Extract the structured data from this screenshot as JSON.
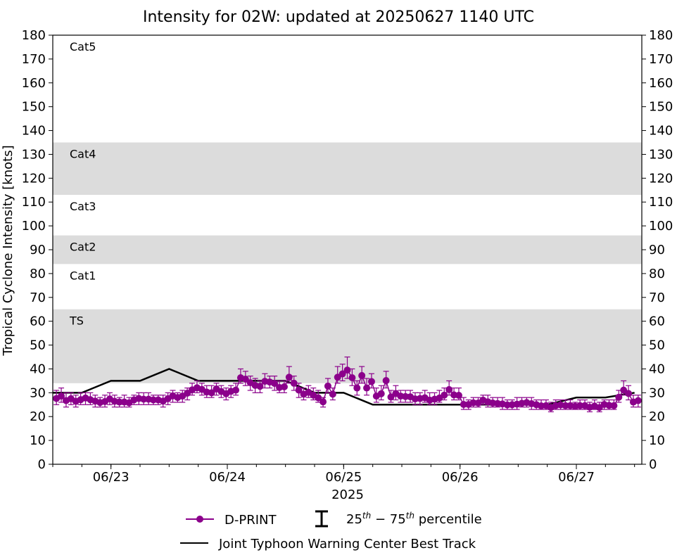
{
  "chart_data": {
    "type": "scatter",
    "title": "Intensity for 02W: updated at 20250627 1140 UTC",
    "xlabel": "2025",
    "ylabel": "Tropical Cyclone Intensity [knots]",
    "ylim": [
      0,
      180
    ],
    "yticks": [
      0,
      10,
      20,
      30,
      40,
      50,
      60,
      70,
      80,
      90,
      100,
      110,
      120,
      130,
      140,
      150,
      160,
      170,
      180
    ],
    "x_unit": "days (2025)",
    "xlim": [
      "2025-06-22 12:00",
      "2025-06-27 13:30"
    ],
    "xticks": [
      {
        "date": "2025-06-23",
        "label": "06/23"
      },
      {
        "date": "2025-06-24",
        "label": "06/24"
      },
      {
        "date": "2025-06-25",
        "label": "06/25"
      },
      {
        "date": "2025-06-26",
        "label": "06/26"
      },
      {
        "date": "2025-06-27",
        "label": "06/27"
      }
    ],
    "bands": [
      {
        "label": "TS",
        "from": 34,
        "to": 65,
        "shaded": true
      },
      {
        "label": "Cat1",
        "from": 65,
        "to": 84,
        "shaded": false
      },
      {
        "label": "Cat2",
        "from": 84,
        "to": 96,
        "shaded": true
      },
      {
        "label": "Cat3",
        "from": 96,
        "to": 113,
        "shaded": false
      },
      {
        "label": "Cat4",
        "from": 113,
        "to": 135,
        "shaded": true
      },
      {
        "label": "Cat5",
        "from": 135,
        "to": 180,
        "shaded": false
      }
    ],
    "series": [
      {
        "name": "D-PRINT",
        "color": "#8b008b",
        "points": [
          [
            "2025-06-22 12:45",
            27.6,
            25,
            31
          ],
          [
            "2025-06-22 13:45",
            28.6,
            26,
            32
          ],
          [
            "2025-06-22 14:45",
            26.7,
            24,
            30
          ],
          [
            "2025-06-22 15:45",
            27.5,
            25,
            30
          ],
          [
            "2025-06-22 16:45",
            26.4,
            24,
            29
          ],
          [
            "2025-06-22 17:45",
            27.1,
            25,
            30
          ],
          [
            "2025-06-22 18:45",
            27.8,
            25,
            30
          ],
          [
            "2025-06-22 19:45",
            27.1,
            25,
            30
          ],
          [
            "2025-06-22 20:45",
            26.5,
            24,
            29
          ],
          [
            "2025-06-22 21:45",
            25.9,
            24,
            28
          ],
          [
            "2025-06-22 22:45",
            26.3,
            24,
            29
          ],
          [
            "2025-06-22 23:45",
            27.4,
            25,
            30
          ],
          [
            "2025-06-23 00:45",
            26.4,
            24,
            29
          ],
          [
            "2025-06-23 01:45",
            26.1,
            24,
            28
          ],
          [
            "2025-06-23 02:45",
            26.1,
            24,
            29
          ],
          [
            "2025-06-23 03:45",
            25.8,
            24,
            28
          ],
          [
            "2025-06-23 04:45",
            27.0,
            25,
            29
          ],
          [
            "2025-06-23 05:45",
            27.6,
            25,
            30
          ],
          [
            "2025-06-23 06:45",
            27.3,
            25,
            30
          ],
          [
            "2025-06-23 07:45",
            27.3,
            25,
            30
          ],
          [
            "2025-06-23 08:45",
            27.0,
            25,
            29
          ],
          [
            "2025-06-23 09:45",
            27.0,
            25,
            29
          ],
          [
            "2025-06-23 10:45",
            26.5,
            24,
            29
          ],
          [
            "2025-06-23 11:45",
            27.5,
            25,
            30
          ],
          [
            "2025-06-23 12:45",
            28.7,
            26,
            31
          ],
          [
            "2025-06-23 13:45",
            28.0,
            26,
            30
          ],
          [
            "2025-06-23 14:45",
            28.6,
            26,
            31
          ],
          [
            "2025-06-23 15:45",
            29.8,
            27,
            32
          ],
          [
            "2025-06-23 16:45",
            31.2,
            29,
            34
          ],
          [
            "2025-06-23 17:45",
            32.1,
            30,
            35
          ],
          [
            "2025-06-23 18:45",
            31.4,
            29,
            34
          ],
          [
            "2025-06-23 19:45",
            30.3,
            28,
            33
          ],
          [
            "2025-06-23 20:45",
            30.0,
            28,
            33
          ],
          [
            "2025-06-23 21:45",
            31.6,
            29,
            34
          ],
          [
            "2025-06-23 22:45",
            30.5,
            28,
            33
          ],
          [
            "2025-06-23 23:45",
            29.6,
            27,
            32
          ],
          [
            "2025-06-24 00:45",
            30.6,
            28,
            33
          ],
          [
            "2025-06-24 01:45",
            31.1,
            29,
            34
          ],
          [
            "2025-06-24 02:45",
            36.3,
            34,
            40
          ],
          [
            "2025-06-24 03:45",
            35.7,
            33,
            39
          ],
          [
            "2025-06-24 04:45",
            34.2,
            31,
            37
          ],
          [
            "2025-06-24 05:45",
            33.1,
            30,
            36
          ],
          [
            "2025-06-24 06:45",
            32.7,
            30,
            35
          ],
          [
            "2025-06-24 07:45",
            34.8,
            32,
            38
          ],
          [
            "2025-06-24 08:45",
            34.5,
            32,
            37
          ],
          [
            "2025-06-24 09:45",
            33.9,
            31,
            37
          ],
          [
            "2025-06-24 10:45",
            32.2,
            30,
            35
          ],
          [
            "2025-06-24 11:45",
            32.5,
            30,
            35
          ],
          [
            "2025-06-24 12:45",
            36.5,
            34,
            41
          ],
          [
            "2025-06-24 13:45",
            34.0,
            31,
            37
          ],
          [
            "2025-06-24 14:45",
            31.1,
            28,
            34
          ],
          [
            "2025-06-24 15:45",
            29.4,
            27,
            32
          ],
          [
            "2025-06-24 16:45",
            30.2,
            28,
            33
          ],
          [
            "2025-06-24 17:45",
            29.0,
            27,
            32
          ],
          [
            "2025-06-24 18:45",
            27.9,
            26,
            31
          ],
          [
            "2025-06-24 19:45",
            26.2,
            24,
            28
          ],
          [
            "2025-06-24 20:45",
            32.8,
            30,
            36
          ],
          [
            "2025-06-24 21:45",
            29.4,
            27,
            32
          ],
          [
            "2025-06-24 22:45",
            36.5,
            34,
            41
          ],
          [
            "2025-06-24 23:45",
            37.9,
            35,
            42
          ],
          [
            "2025-06-25 00:45",
            39.5,
            36,
            45
          ],
          [
            "2025-06-25 01:45",
            36.3,
            33,
            40
          ],
          [
            "2025-06-25 02:45",
            32.0,
            29,
            35
          ],
          [
            "2025-06-25 03:45",
            37.2,
            34,
            41
          ],
          [
            "2025-06-25 04:45",
            32.0,
            29,
            36
          ],
          [
            "2025-06-25 05:45",
            34.7,
            32,
            38
          ],
          [
            "2025-06-25 06:45",
            28.6,
            26,
            32
          ],
          [
            "2025-06-25 07:45",
            29.6,
            27,
            33
          ],
          [
            "2025-06-25 08:45",
            35.1,
            32,
            39
          ],
          [
            "2025-06-25 09:45",
            28.2,
            26,
            31
          ],
          [
            "2025-06-25 10:45",
            29.7,
            27,
            33
          ],
          [
            "2025-06-25 11:45",
            28.6,
            26,
            31
          ],
          [
            "2025-06-25 12:45",
            28.4,
            26,
            31
          ],
          [
            "2025-06-25 13:45",
            28.3,
            26,
            31
          ],
          [
            "2025-06-25 14:45",
            27.4,
            25,
            30
          ],
          [
            "2025-06-25 15:45",
            27.6,
            25,
            30
          ],
          [
            "2025-06-25 16:45",
            27.9,
            26,
            31
          ],
          [
            "2025-06-25 17:45",
            26.9,
            25,
            30
          ],
          [
            "2025-06-25 18:45",
            27.3,
            25,
            30
          ],
          [
            "2025-06-25 19:45",
            27.8,
            26,
            31
          ],
          [
            "2025-06-25 20:45",
            29.0,
            27,
            32
          ],
          [
            "2025-06-25 21:45",
            31.3,
            29,
            35
          ],
          [
            "2025-06-25 22:45",
            29.1,
            27,
            32
          ],
          [
            "2025-06-25 23:45",
            28.9,
            27,
            32
          ],
          [
            "2025-06-26 00:45",
            25.1,
            23,
            28
          ],
          [
            "2025-06-26 01:45",
            25.1,
            23,
            27
          ],
          [
            "2025-06-26 02:45",
            25.8,
            24,
            28
          ],
          [
            "2025-06-26 03:45",
            25.7,
            24,
            28
          ],
          [
            "2025-06-26 04:45",
            26.9,
            25,
            29
          ],
          [
            "2025-06-26 05:45",
            26.2,
            24,
            29
          ],
          [
            "2025-06-26 06:45",
            25.7,
            24,
            28
          ],
          [
            "2025-06-26 07:45",
            25.5,
            24,
            28
          ],
          [
            "2025-06-26 08:45",
            25.3,
            23,
            28
          ],
          [
            "2025-06-26 09:45",
            24.9,
            23,
            27
          ],
          [
            "2025-06-26 10:45",
            25.0,
            23,
            27
          ],
          [
            "2025-06-26 11:45",
            25.2,
            23,
            28
          ],
          [
            "2025-06-26 12:45",
            25.6,
            24,
            28
          ],
          [
            "2025-06-26 13:45",
            25.9,
            24,
            28
          ],
          [
            "2025-06-26 14:45",
            25.4,
            23,
            28
          ],
          [
            "2025-06-26 15:45",
            25.0,
            23,
            27
          ],
          [
            "2025-06-26 16:45",
            24.5,
            23,
            27
          ],
          [
            "2025-06-26 17:45",
            24.6,
            23,
            27
          ],
          [
            "2025-06-26 18:45",
            23.8,
            22,
            26
          ],
          [
            "2025-06-26 19:45",
            24.6,
            23,
            27
          ],
          [
            "2025-06-26 20:45",
            24.9,
            23,
            27
          ],
          [
            "2025-06-26 21:45",
            24.6,
            23,
            27
          ],
          [
            "2025-06-26 22:45",
            24.6,
            23,
            27
          ],
          [
            "2025-06-26 23:45",
            24.3,
            23,
            26
          ],
          [
            "2025-06-27 00:45",
            24.6,
            23,
            27
          ],
          [
            "2025-06-27 01:45",
            24.6,
            23,
            27
          ],
          [
            "2025-06-27 02:45",
            23.9,
            22,
            26
          ],
          [
            "2025-06-27 03:45",
            24.4,
            23,
            27
          ],
          [
            "2025-06-27 04:45",
            23.8,
            22,
            26
          ],
          [
            "2025-06-27 05:45",
            25.1,
            23,
            27
          ],
          [
            "2025-06-27 06:45",
            24.7,
            23,
            27
          ],
          [
            "2025-06-27 07:45",
            24.6,
            23,
            27
          ],
          [
            "2025-06-27 08:45",
            28.1,
            26,
            31
          ],
          [
            "2025-06-27 09:45",
            31.1,
            29,
            35
          ],
          [
            "2025-06-27 10:45",
            29.7,
            27,
            33
          ],
          [
            "2025-06-27 11:45",
            26.1,
            24,
            29
          ],
          [
            "2025-06-27 12:45",
            26.7,
            24,
            29
          ]
        ]
      },
      {
        "name": "Joint Typhoon Warning Center Best Track",
        "color": "#000000",
        "points": [
          [
            "2025-06-22 12:00",
            30
          ],
          [
            "2025-06-22 18:00",
            30
          ],
          [
            "2025-06-23 00:00",
            35
          ],
          [
            "2025-06-23 06:00",
            35
          ],
          [
            "2025-06-23 12:00",
            40
          ],
          [
            "2025-06-23 18:00",
            35
          ],
          [
            "2025-06-24 00:00",
            35
          ],
          [
            "2025-06-24 06:00",
            35
          ],
          [
            "2025-06-24 12:00",
            35
          ],
          [
            "2025-06-24 18:00",
            30
          ],
          [
            "2025-06-25 00:00",
            30
          ],
          [
            "2025-06-25 06:00",
            25
          ],
          [
            "2025-06-25 12:00",
            25
          ],
          [
            "2025-06-25 18:00",
            25
          ],
          [
            "2025-06-26 00:00",
            25
          ],
          [
            "2025-06-26 06:00",
            25
          ],
          [
            "2025-06-26 12:00",
            25
          ],
          [
            "2025-06-26 18:00",
            25
          ],
          [
            "2025-06-27 00:00",
            28
          ],
          [
            "2025-06-27 06:00",
            28
          ],
          [
            "2025-06-27 12:00",
            30
          ]
        ]
      }
    ],
    "legend": {
      "placement": "bottom",
      "items": [
        {
          "label": "D-PRINT",
          "kind": "marker-line",
          "color": "#8b008b"
        },
        {
          "label": "25th - 75th percentile",
          "kind": "errorbar",
          "color": "#000000"
        },
        {
          "label": "Joint Typhoon Warning Center Best Track",
          "kind": "line",
          "color": "#000000"
        }
      ]
    },
    "colors": {
      "band_fill": "#dcdcdc",
      "dprint": "#8b008b",
      "best_track": "#000000"
    }
  }
}
